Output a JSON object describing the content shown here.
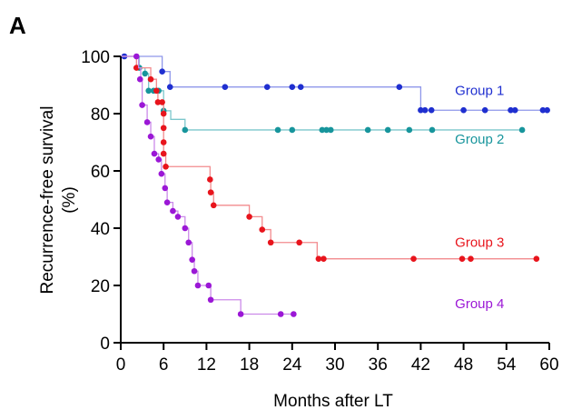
{
  "panel_label": "A",
  "chart_data": {
    "type": "line",
    "title": "",
    "xlabel": "Months after LT",
    "ylabel": "Recurrence-free survival",
    "ylabel_unit": "(%)",
    "xlim": [
      0,
      60
    ],
    "ylim": [
      0,
      100
    ],
    "xticks": [
      0,
      6,
      12,
      18,
      24,
      30,
      36,
      42,
      48,
      54,
      60
    ],
    "yticks": [
      0,
      20,
      40,
      60,
      80,
      100
    ],
    "grid": false,
    "series": [
      {
        "name": "Group 1",
        "color": "#1f2fd0",
        "line_color": "#8f97ea",
        "steps": [
          [
            0,
            100
          ],
          [
            5.8,
            94.7
          ],
          [
            6.9,
            89.3
          ],
          [
            39,
            89.3
          ],
          [
            42,
            81.2
          ],
          [
            59.5,
            81.2
          ]
        ],
        "points": [
          [
            0.5,
            100
          ],
          [
            5.8,
            94.7
          ],
          [
            6.9,
            89.3
          ],
          [
            14.6,
            89.3
          ],
          [
            20.5,
            89.3
          ],
          [
            24,
            89.3
          ],
          [
            25.2,
            89.3
          ],
          [
            39,
            89.3
          ],
          [
            42,
            81.2
          ],
          [
            42.6,
            81.2
          ],
          [
            43.5,
            81.2
          ],
          [
            48,
            81.2
          ],
          [
            51,
            81.2
          ],
          [
            54.6,
            81.2
          ],
          [
            55.2,
            81.2
          ],
          [
            59.1,
            81.2
          ],
          [
            59.7,
            81.2
          ]
        ]
      },
      {
        "name": "Group 2",
        "color": "#17959c",
        "line_color": "#7cc7cc",
        "steps": [
          [
            0,
            100
          ],
          [
            2.6,
            96
          ],
          [
            3.4,
            94
          ],
          [
            3.9,
            88
          ],
          [
            5.5,
            88
          ],
          [
            6,
            81
          ],
          [
            7,
            78
          ],
          [
            9,
            74.3
          ],
          [
            56,
            74.3
          ]
        ],
        "points": [
          [
            2.6,
            96
          ],
          [
            3.4,
            94
          ],
          [
            3.9,
            88
          ],
          [
            4.6,
            88
          ],
          [
            5.3,
            88
          ],
          [
            6,
            81
          ],
          [
            9,
            74.3
          ],
          [
            22,
            74.3
          ],
          [
            24,
            74.3
          ],
          [
            28.2,
            74.3
          ],
          [
            28.8,
            74.3
          ],
          [
            29.4,
            74.3
          ],
          [
            34.6,
            74.3
          ],
          [
            37.4,
            74.3
          ],
          [
            40.4,
            74.3
          ],
          [
            43.6,
            74.3
          ],
          [
            56.2,
            74.3
          ]
        ]
      },
      {
        "name": "Group 3",
        "color": "#e8141c",
        "line_color": "#f28b8e",
        "steps": [
          [
            0,
            100
          ],
          [
            2.2,
            96
          ],
          [
            3.5,
            96
          ],
          [
            4.2,
            92
          ],
          [
            5,
            88
          ],
          [
            5.2,
            84
          ],
          [
            6,
            80
          ],
          [
            6,
            75
          ],
          [
            6,
            70
          ],
          [
            6,
            66
          ],
          [
            6.3,
            61.5
          ],
          [
            12.5,
            57
          ],
          [
            12.6,
            52.5
          ],
          [
            13,
            48
          ],
          [
            18,
            44
          ],
          [
            19.8,
            39.5
          ],
          [
            21,
            35
          ],
          [
            25,
            35
          ],
          [
            27.5,
            29.3
          ],
          [
            58.5,
            29.3
          ]
        ],
        "points": [
          [
            2.2,
            96
          ],
          [
            4.2,
            92
          ],
          [
            5,
            88
          ],
          [
            5.2,
            84
          ],
          [
            5.8,
            84
          ],
          [
            6,
            80
          ],
          [
            6,
            75
          ],
          [
            6,
            70
          ],
          [
            6,
            66
          ],
          [
            6.3,
            61.5
          ],
          [
            12.5,
            57
          ],
          [
            12.6,
            52.5
          ],
          [
            13,
            48
          ],
          [
            18,
            44
          ],
          [
            19.8,
            39.5
          ],
          [
            21,
            35
          ],
          [
            25,
            35
          ],
          [
            27.7,
            29.3
          ],
          [
            28.4,
            29.3
          ],
          [
            41,
            29.3
          ],
          [
            47.8,
            29.3
          ],
          [
            49,
            29.3
          ],
          [
            58.2,
            29.3
          ]
        ]
      },
      {
        "name": "Group 4",
        "color": "#9b17d6",
        "line_color": "#cb8be9",
        "steps": [
          [
            0,
            100
          ],
          [
            2.2,
            100
          ],
          [
            2.5,
            96
          ],
          [
            2.8,
            92
          ],
          [
            3,
            83
          ],
          [
            3.7,
            77
          ],
          [
            4.2,
            72
          ],
          [
            4.7,
            66
          ],
          [
            5.3,
            64
          ],
          [
            5.7,
            59
          ],
          [
            6.2,
            54
          ],
          [
            6.5,
            49
          ],
          [
            7.3,
            46
          ],
          [
            8,
            44
          ],
          [
            9,
            40
          ],
          [
            9.5,
            35
          ],
          [
            10,
            29
          ],
          [
            10.3,
            25
          ],
          [
            10.8,
            20
          ],
          [
            12.3,
            20
          ],
          [
            12.6,
            15
          ],
          [
            16.8,
            10
          ],
          [
            24.5,
            10
          ]
        ],
        "points": [
          [
            2.2,
            100
          ],
          [
            2.7,
            92
          ],
          [
            3,
            83
          ],
          [
            3.7,
            77
          ],
          [
            4.2,
            72
          ],
          [
            4.7,
            66
          ],
          [
            5.3,
            64
          ],
          [
            5.7,
            59
          ],
          [
            6.2,
            54
          ],
          [
            6.5,
            49
          ],
          [
            7.3,
            46
          ],
          [
            8,
            44
          ],
          [
            9,
            40
          ],
          [
            9.5,
            35
          ],
          [
            10,
            29
          ],
          [
            10.3,
            25
          ],
          [
            10.8,
            20
          ],
          [
            12.3,
            20
          ],
          [
            12.6,
            15
          ],
          [
            16.8,
            10
          ],
          [
            22.4,
            10
          ],
          [
            24.2,
            10
          ]
        ]
      }
    ],
    "annotations": [
      {
        "text": "Group 1",
        "series": 0,
        "x": 46.8,
        "y": 86.5
      },
      {
        "text": "Group 2",
        "series": 1,
        "x": 46.8,
        "y": 69.5
      },
      {
        "text": "Group 3",
        "series": 2,
        "x": 46.8,
        "y": 33.5
      },
      {
        "text": "Group 4",
        "series": 3,
        "x": 46.8,
        "y": 12
      }
    ]
  }
}
